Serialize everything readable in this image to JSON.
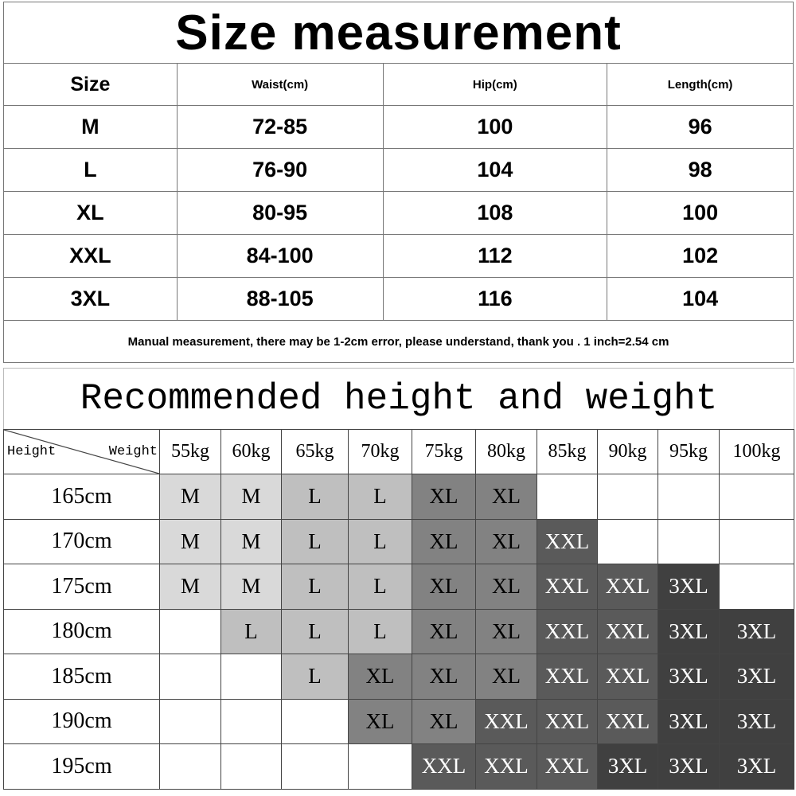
{
  "size_table": {
    "title": "Size measurement",
    "headers": [
      "Size",
      "Waist(cm)",
      "Hip(cm)",
      "Length(cm)"
    ],
    "rows": [
      [
        "M",
        "72-85",
        "100",
        "96"
      ],
      [
        "L",
        "76-90",
        "104",
        "98"
      ],
      [
        "XL",
        "80-95",
        "108",
        "100"
      ],
      [
        "XXL",
        "84-100",
        "112",
        "102"
      ],
      [
        "3XL",
        "88-105",
        "116",
        "104"
      ]
    ],
    "note": "Manual measurement, there may be 1-2cm error, please understand, thank you .   1 inch=2.54 cm"
  },
  "recommend_table": {
    "title": "Recommended height and weight",
    "corner_height": "Height",
    "corner_weight": "Weight",
    "weights": [
      "55kg",
      "60kg",
      "65kg",
      "70kg",
      "75kg",
      "80kg",
      "85kg",
      "90kg",
      "95kg",
      "100kg"
    ],
    "rows": [
      {
        "height": "165cm",
        "sizes": [
          "M",
          "M",
          "L",
          "L",
          "XL",
          "XL",
          "",
          "",
          "",
          ""
        ]
      },
      {
        "height": "170cm",
        "sizes": [
          "M",
          "M",
          "L",
          "L",
          "XL",
          "XL",
          "XXL",
          "",
          "",
          ""
        ]
      },
      {
        "height": "175cm",
        "sizes": [
          "M",
          "M",
          "L",
          "L",
          "XL",
          "XL",
          "XXL",
          "XXL",
          "3XL",
          ""
        ]
      },
      {
        "height": "180cm",
        "sizes": [
          "",
          "L",
          "L",
          "L",
          "XL",
          "XL",
          "XXL",
          "XXL",
          "3XL",
          "3XL"
        ]
      },
      {
        "height": "185cm",
        "sizes": [
          "",
          "",
          "L",
          "XL",
          "XL",
          "XL",
          "XXL",
          "XXL",
          "3XL",
          "3XL"
        ]
      },
      {
        "height": "190cm",
        "sizes": [
          "",
          "",
          "",
          "XL",
          "XL",
          "XXL",
          "XXL",
          "XXL",
          "3XL",
          "3XL"
        ]
      },
      {
        "height": "195cm",
        "sizes": [
          "",
          "",
          "",
          "",
          "XXL",
          "XXL",
          "XXL",
          "3XL",
          "3XL",
          "3XL"
        ]
      }
    ],
    "size_colors": {
      "M": "#d9d9d9",
      "L": "#bfbfbf",
      "XL": "#828282",
      "XXL": "#5a5a5a",
      "3XL": "#404040"
    },
    "size_text_colors": {
      "M": "#000000",
      "L": "#000000",
      "XL": "#000000",
      "XXL": "#ffffff",
      "3XL": "#ffffff"
    }
  }
}
